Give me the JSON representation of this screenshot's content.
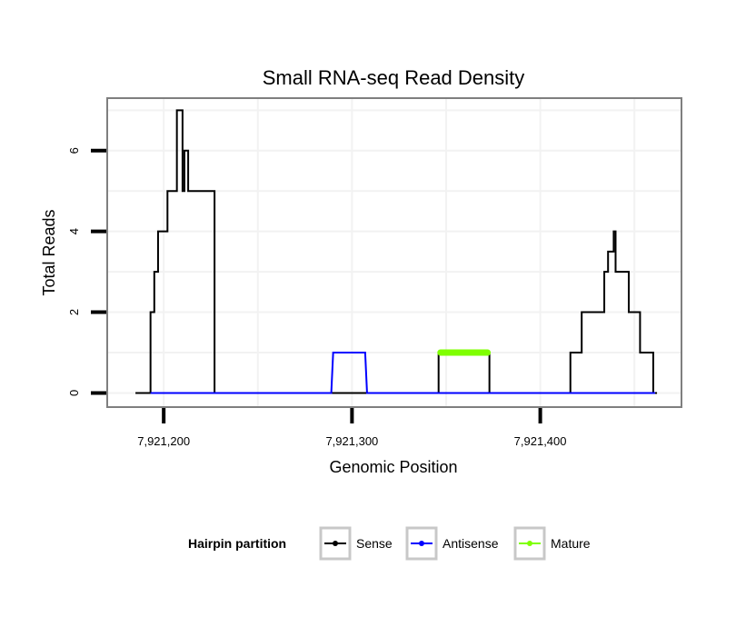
{
  "chart_data": {
    "type": "line",
    "title": "Small RNA-seq Read Density",
    "xlabel": "Genomic Position",
    "ylabel": "Total Reads",
    "xlim": [
      7921170,
      7921475
    ],
    "ylim": [
      -0.35,
      7.3
    ],
    "x_ticks": [
      7921200,
      7921300,
      7921400
    ],
    "x_tick_labels": [
      "7,921,200",
      "7,921,300",
      "7,921,400"
    ],
    "y_ticks": [
      0,
      2,
      4,
      6
    ],
    "y_tick_labels": [
      "0",
      "2",
      "4",
      "6"
    ],
    "grid": true,
    "legend": {
      "title": "Hairpin partition",
      "placement": "bottom",
      "entries": [
        "Sense",
        "Antisense",
        "Mature"
      ]
    },
    "series": [
      {
        "name": "Sense",
        "color": "#000000",
        "x": [
          7921185,
          7921193,
          7921193,
          7921195,
          7921195,
          7921197,
          7921197,
          7921200,
          7921200,
          7921202,
          7921202,
          7921207,
          7921207,
          7921210,
          7921210,
          7921211,
          7921211,
          7921212,
          7921212,
          7921213,
          7921213,
          7921218,
          7921218,
          7921227,
          7921227,
          7921228,
          7921228,
          7921346,
          7921346,
          7921373,
          7921373,
          7921416,
          7921416,
          7921418,
          7921418,
          7921422,
          7921422,
          7921428,
          7921428,
          7921434,
          7921434,
          7921436,
          7921436,
          7921439,
          7921439,
          7921440,
          7921440,
          7921441,
          7921441,
          7921443,
          7921443,
          7921447,
          7921447,
          7921453,
          7921453,
          7921459,
          7921459,
          7921460,
          7921460,
          7921462
        ],
        "values": [
          0,
          0,
          2,
          2,
          3,
          3,
          4,
          4,
          4,
          4,
          5,
          5,
          7,
          7,
          5,
          5,
          6,
          6,
          6,
          6,
          5,
          5,
          5,
          5,
          0,
          0,
          0,
          0,
          1,
          1,
          0,
          0,
          1,
          1,
          1,
          1,
          2,
          2,
          2,
          2,
          3,
          3,
          3.5,
          3.5,
          4,
          4,
          3,
          3,
          3,
          3,
          3,
          3,
          2,
          2,
          1,
          1,
          1,
          1,
          0,
          0
        ]
      },
      {
        "name": "Antisense",
        "color": "#0000ff",
        "x": [
          7921193,
          7921289,
          7921290,
          7921307,
          7921308,
          7921461
        ],
        "values": [
          0,
          0,
          1,
          1,
          0,
          0
        ]
      },
      {
        "name": "Mature",
        "color": "#7fff00",
        "x": [
          7921347,
          7921372
        ],
        "values": [
          1,
          1
        ]
      }
    ]
  }
}
